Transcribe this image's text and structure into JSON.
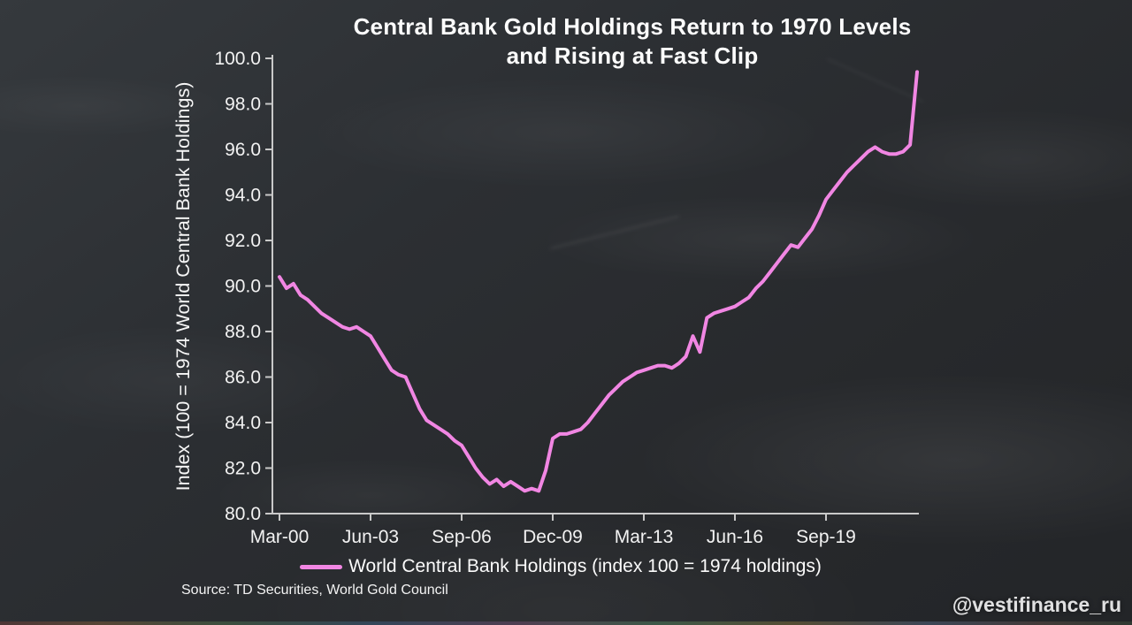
{
  "page": {
    "watermark": "@vestifinance_ru"
  },
  "chart": {
    "title_line1": "Central Bank Gold Holdings Return to 1970 Levels",
    "title_line2": "and Rising at Fast Clip",
    "ylabel": "Index (100 = 1974 World Central Bank Holdings)",
    "legend_label": "World Central Bank Holdings (index 100 = 1974 holdings)",
    "source": "Source: TD Securities, World Gold Council",
    "colors": {
      "line": "#f186e3",
      "axis": "#c9c9c9",
      "text": "#f2f2f2",
      "background": "#2c2f33"
    }
  },
  "chart_data": {
    "type": "line",
    "title": "Central Bank Gold Holdings Return to 1970 Levels and Rising at Fast Clip",
    "xlabel": "",
    "ylabel": "Index (100 = 1974 World Central Bank Holdings)",
    "ylim": [
      80,
      100
    ],
    "yticks": [
      80,
      82,
      84,
      86,
      88,
      90,
      92,
      94,
      96,
      98,
      100
    ],
    "grid": false,
    "legend_position": "bottom",
    "series_name": "World Central Bank Holdings (index 100 = 1974 holdings)",
    "xticks": [
      {
        "index": 0,
        "label": "Mar-00"
      },
      {
        "index": 13,
        "label": "Jun-03"
      },
      {
        "index": 26,
        "label": "Sep-06"
      },
      {
        "index": 39,
        "label": "Dec-09"
      },
      {
        "index": 52,
        "label": "Mar-13"
      },
      {
        "index": 65,
        "label": "Jun-16"
      },
      {
        "index": 78,
        "label": "Sep-19"
      }
    ],
    "x": [
      "Mar-00",
      "Jun-00",
      "Sep-00",
      "Dec-00",
      "Mar-01",
      "Jun-01",
      "Sep-01",
      "Dec-01",
      "Mar-02",
      "Jun-02",
      "Sep-02",
      "Dec-02",
      "Mar-03",
      "Jun-03",
      "Sep-03",
      "Dec-03",
      "Mar-04",
      "Jun-04",
      "Sep-04",
      "Dec-04",
      "Mar-05",
      "Jun-05",
      "Sep-05",
      "Dec-05",
      "Mar-06",
      "Jun-06",
      "Sep-06",
      "Dec-06",
      "Mar-07",
      "Jun-07",
      "Sep-07",
      "Dec-07",
      "Mar-08",
      "Jun-08",
      "Sep-08",
      "Dec-08",
      "Mar-09",
      "Jun-09",
      "Sep-09",
      "Dec-09",
      "Mar-10",
      "Jun-10",
      "Sep-10",
      "Dec-10",
      "Mar-11",
      "Jun-11",
      "Sep-11",
      "Dec-11",
      "Mar-12",
      "Jun-12",
      "Sep-12",
      "Dec-12",
      "Mar-13",
      "Jun-13",
      "Sep-13",
      "Dec-13",
      "Mar-14",
      "Jun-14",
      "Sep-14",
      "Dec-14",
      "Mar-15",
      "Jun-15",
      "Sep-15",
      "Dec-15",
      "Mar-16",
      "Jun-16",
      "Sep-16",
      "Dec-16",
      "Mar-17",
      "Jun-17",
      "Sep-17",
      "Dec-17",
      "Mar-18",
      "Jun-18",
      "Sep-18",
      "Dec-18",
      "Mar-19",
      "Jun-19",
      "Sep-19",
      "Dec-19",
      "Mar-20",
      "Jun-20",
      "Sep-20",
      "Dec-20",
      "Mar-21",
      "Jun-21",
      "Sep-21",
      "Dec-21",
      "Mar-22",
      "Jun-22",
      "Sep-22",
      "Dec-22"
    ],
    "values": [
      90.4,
      89.9,
      90.1,
      89.6,
      89.4,
      89.1,
      88.8,
      88.6,
      88.4,
      88.2,
      88.1,
      88.2,
      88.0,
      87.8,
      87.3,
      86.8,
      86.3,
      86.1,
      86.0,
      85.3,
      84.6,
      84.1,
      83.9,
      83.7,
      83.5,
      83.2,
      83.0,
      82.5,
      82.0,
      81.6,
      81.3,
      81.5,
      81.2,
      81.4,
      81.2,
      81.0,
      81.1,
      81.0,
      81.9,
      83.3,
      83.5,
      83.5,
      83.6,
      83.7,
      84.0,
      84.4,
      84.8,
      85.2,
      85.5,
      85.8,
      86.0,
      86.2,
      86.3,
      86.4,
      86.5,
      86.5,
      86.4,
      86.6,
      86.9,
      87.8,
      87.1,
      88.6,
      88.8,
      88.9,
      89.0,
      89.1,
      89.3,
      89.5,
      89.9,
      90.2,
      90.6,
      91.0,
      91.4,
      91.8,
      91.7,
      92.1,
      92.5,
      93.1,
      93.8,
      94.2,
      94.6,
      95.0,
      95.3,
      95.6,
      95.9,
      96.1,
      95.9,
      95.8,
      95.8,
      95.9,
      96.2,
      99.4
    ]
  }
}
